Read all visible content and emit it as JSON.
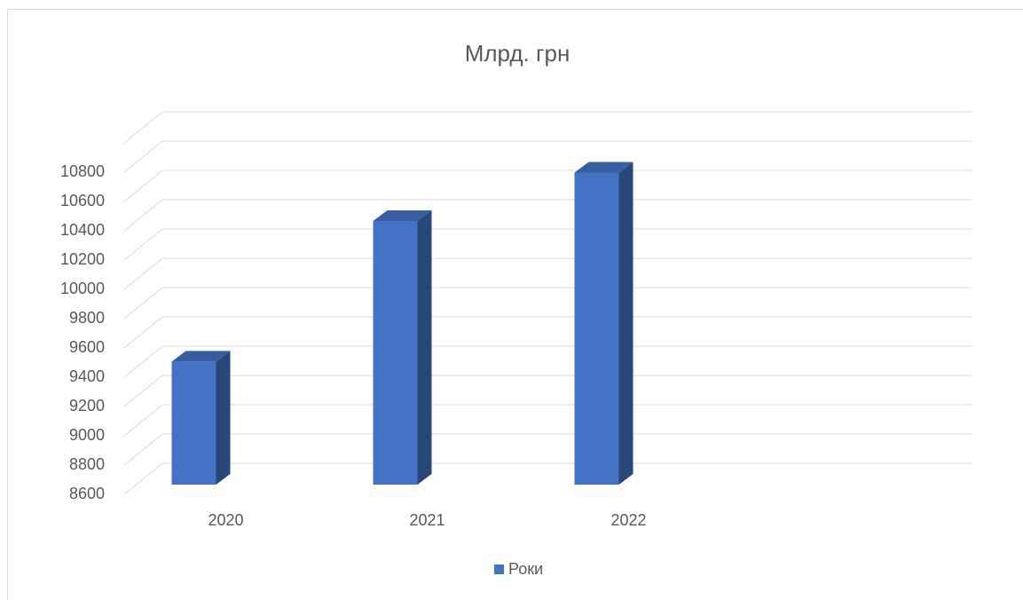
{
  "chart_data": {
    "type": "bar3d",
    "title": "Млрд. грн",
    "categories": [
      "2020",
      "2021",
      "2022",
      null
    ],
    "series": [
      {
        "name": "Роки",
        "color": "#4472c4",
        "values": [
          9440,
          10400,
          10730,
          null
        ]
      }
    ],
    "ylim": [
      8600,
      11000
    ],
    "yticks": [
      8600,
      8800,
      9000,
      9200,
      9400,
      9600,
      9800,
      10000,
      10200,
      10400,
      10600,
      10800
    ],
    "grid": true,
    "legend": "bottom"
  }
}
